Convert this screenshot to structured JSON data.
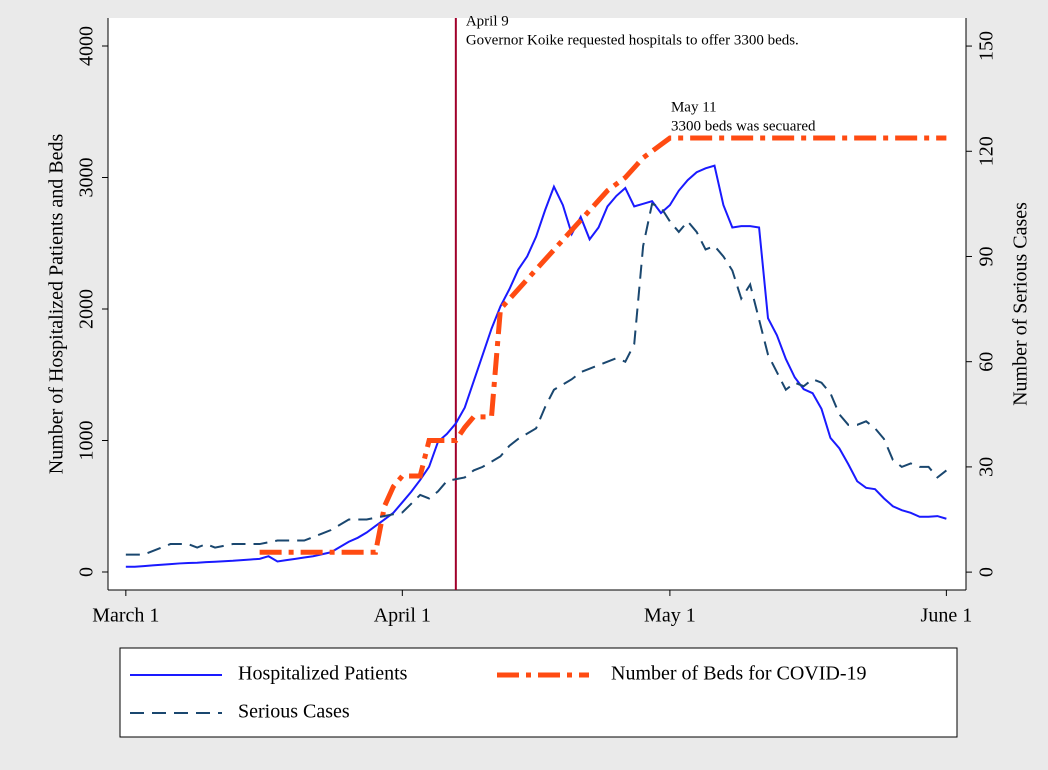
{
  "chart_data": {
    "type": "line",
    "xlabel_note": null,
    "ylabel": "Number of Hospitalized Patients and Beds",
    "y2label": "Number of Serious Cases",
    "xlim": [
      -2,
      94.2
    ],
    "xticks": [
      {
        "value": 0,
        "label": "March 1"
      },
      {
        "value": 31,
        "label": "April 1"
      },
      {
        "value": 61,
        "label": "May 1"
      },
      {
        "value": 92,
        "label": "June 1"
      }
    ],
    "ylim": [
      -137,
      4213
    ],
    "yticks": [
      0,
      1000,
      2000,
      3000,
      4000
    ],
    "y2lim": [
      -5.1,
      158
    ],
    "y2ticks": [
      0,
      30,
      60,
      90,
      120,
      150
    ],
    "vline": {
      "x": 37,
      "color": "#a0002a"
    },
    "annotations": [
      {
        "x": 37,
        "y": 4213,
        "lines": [
          "April 9",
          "Governor Koike requested hospitals to offer 3300 beds."
        ]
      },
      {
        "x": 60,
        "y": 3560,
        "lines": [
          "May 11",
          "3300 beds was secuared"
        ]
      }
    ],
    "series": [
      {
        "name": "Hospitalized Patients",
        "color": "#1a1aff",
        "dash": "solid",
        "x": [
          0,
          1,
          2,
          3,
          4,
          5,
          6,
          7,
          8,
          9,
          10,
          11,
          12,
          13,
          14,
          15,
          16,
          17,
          18,
          19,
          20,
          21,
          22,
          23,
          24,
          25,
          26,
          27,
          28,
          29,
          30,
          31,
          32,
          33,
          34,
          35,
          36,
          37,
          38,
          39,
          40,
          41,
          42,
          43,
          44,
          45,
          46,
          47,
          48,
          49,
          50,
          51,
          52,
          53,
          54,
          55,
          56,
          57,
          58,
          59,
          60,
          61,
          62,
          63,
          64,
          65,
          66,
          67,
          68,
          69,
          70,
          71,
          72,
          73,
          74,
          75,
          76,
          77,
          78,
          79,
          80,
          81,
          82,
          83,
          84,
          85,
          86,
          87,
          88,
          89,
          90,
          91,
          92
        ],
        "values": [
          40,
          40,
          45,
          50,
          55,
          60,
          65,
          68,
          70,
          75,
          78,
          82,
          85,
          90,
          95,
          100,
          120,
          80,
          90,
          100,
          110,
          120,
          135,
          150,
          190,
          230,
          260,
          300,
          350,
          400,
          450,
          530,
          610,
          700,
          800,
          990,
          1050,
          1130,
          1250,
          1450,
          1650,
          1850,
          2020,
          2150,
          2300,
          2400,
          2550,
          2750,
          2930,
          2790,
          2570,
          2700,
          2530,
          2620,
          2780,
          2860,
          2920,
          2780,
          2800,
          2820,
          2730,
          2790,
          2900,
          2980,
          3040,
          3070,
          3090,
          2790,
          2620,
          2630,
          2630,
          2620,
          1930,
          1800,
          1620,
          1480,
          1390,
          1360,
          1240,
          1020,
          940,
          820,
          690,
          640,
          630,
          560,
          500,
          470,
          450,
          420,
          420,
          425,
          405
        ]
      },
      {
        "name": "Number of Beds for COVID-19",
        "color": "#ff4b12",
        "dash": "dashdot",
        "x": [
          15,
          28,
          29,
          30,
          31,
          33,
          34,
          37,
          38,
          39,
          41,
          42,
          44,
          46,
          48,
          50,
          52,
          54,
          56,
          58,
          60,
          61,
          92
        ],
        "values": [
          150,
          150,
          500,
          650,
          730,
          730,
          1000,
          1000,
          1100,
          1180,
          1180,
          2000,
          2150,
          2300,
          2450,
          2600,
          2750,
          2900,
          3000,
          3150,
          3250,
          3300,
          3300
        ]
      },
      {
        "name": "Serious Cases",
        "color": "#1a476f",
        "dash": "dash",
        "axis": "y2",
        "x": [
          0,
          2,
          4,
          5,
          7,
          8,
          9,
          10,
          12,
          15,
          17,
          20,
          22,
          23,
          25,
          27,
          29,
          31,
          33,
          34,
          35,
          36,
          38,
          39,
          40,
          42,
          43,
          44,
          46,
          47,
          48,
          50,
          51,
          52,
          54,
          55,
          56,
          57,
          58,
          59,
          60,
          61,
          62,
          63,
          64,
          65,
          66,
          67,
          68,
          69,
          70,
          71,
          72,
          73,
          74,
          75,
          76,
          77,
          78,
          79,
          80,
          81,
          82,
          83,
          84,
          85,
          86,
          87,
          88,
          89,
          90,
          91,
          92
        ],
        "values": [
          5,
          5,
          7,
          8,
          8,
          7,
          8,
          7,
          8,
          8,
          9,
          9,
          11,
          12,
          15,
          15,
          16,
          17,
          22,
          21,
          23,
          26,
          27,
          29,
          30,
          33,
          36,
          38,
          41,
          47,
          52,
          55,
          57,
          58,
          60,
          61,
          60,
          65,
          93,
          105,
          104,
          100,
          97,
          100,
          97,
          92,
          93,
          90,
          86,
          78,
          82,
          72,
          62,
          57,
          52,
          54,
          53,
          55,
          54,
          51,
          45,
          42,
          42,
          43,
          41,
          38,
          32,
          30,
          31,
          30,
          30,
          27,
          29
        ]
      }
    ]
  }
}
